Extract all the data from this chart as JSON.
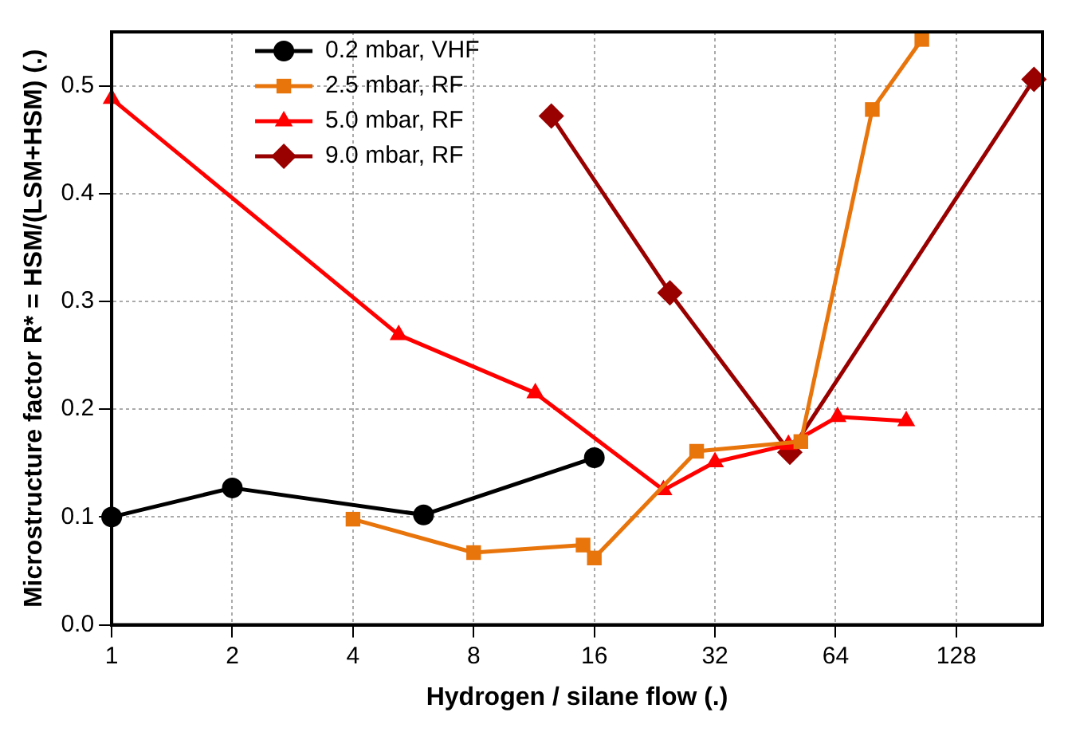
{
  "chart_data": {
    "type": "line",
    "xlabel": "Hydrogen / silane flow (.)",
    "ylabel": "Microstructure factor R* = HSM/(LSM+HSM) (.)",
    "log": "x",
    "xlim": [
      1,
      210
    ],
    "xticks": [
      1,
      2,
      4,
      8,
      16,
      32,
      64,
      128
    ],
    "ylim": [
      0,
      0.55
    ],
    "yticks": [
      {
        "value": 0,
        "label": "0.0"
      },
      {
        "value": 0.1,
        "label": "0.1"
      },
      {
        "value": 0.2,
        "label": "0.2"
      },
      {
        "value": 0.3,
        "label": "0.3"
      },
      {
        "value": 0.4,
        "label": "0.4"
      },
      {
        "value": 0.5,
        "label": "0.5"
      }
    ],
    "grid": true,
    "legend": "top left",
    "line_style": "solid",
    "series": [
      {
        "name": "0.2 mbar, VHF",
        "color": "#000000",
        "marker": "circle",
        "x": [
          1,
          2,
          6,
          16
        ],
        "values": [
          0.1,
          0.127,
          0.102,
          0.155
        ]
      },
      {
        "name": "2.5 mbar, RF",
        "color": "#e8740c",
        "marker": "square",
        "x": [
          4,
          8,
          15,
          16,
          28.8,
          52.4,
          79,
          105
        ],
        "values": [
          0.098,
          0.067,
          0.074,
          0.062,
          0.161,
          0.17,
          0.478,
          0.543
        ]
      },
      {
        "name": "5.0 mbar, RF",
        "color": "#ff0000",
        "marker": "triangle",
        "x": [
          1,
          5.2,
          11.4,
          23.8,
          32,
          48.8,
          64.7,
          96
        ],
        "values": [
          0.488,
          0.269,
          0.215,
          0.125,
          0.151,
          0.167,
          0.193,
          0.189
        ]
      },
      {
        "name": "9.0 mbar, RF",
        "color": "#990000",
        "marker": "diamond",
        "x": [
          12.5,
          24.7,
          49.2,
          200
        ],
        "values": [
          0.472,
          0.308,
          0.16,
          0.506
        ]
      }
    ]
  }
}
